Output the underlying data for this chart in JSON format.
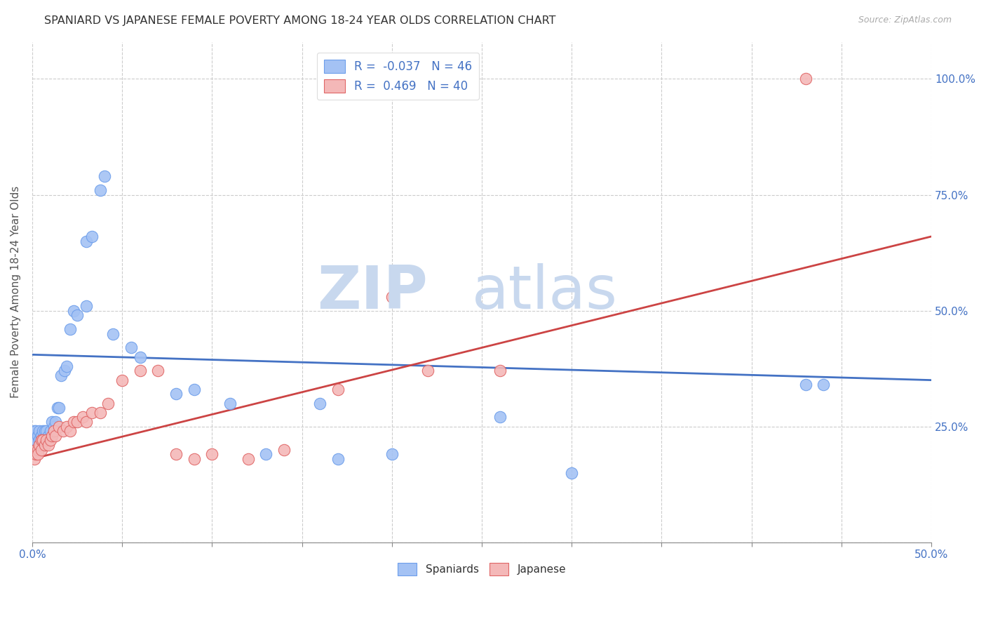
{
  "title": "SPANIARD VS JAPANESE FEMALE POVERTY AMONG 18-24 YEAR OLDS CORRELATION CHART",
  "source": "Source: ZipAtlas.com",
  "ylabel": "Female Poverty Among 18-24 Year Olds",
  "xlim": [
    0.0,
    0.5
  ],
  "ylim": [
    0.0,
    1.08
  ],
  "xticks": [
    0.0,
    0.05,
    0.1,
    0.15,
    0.2,
    0.25,
    0.3,
    0.35,
    0.4,
    0.45,
    0.5
  ],
  "xticklabels": [
    "0.0%",
    "",
    "",
    "",
    "",
    "",
    "",
    "",
    "",
    "",
    "50.0%"
  ],
  "yticks": [
    0.0,
    0.25,
    0.5,
    0.75,
    1.0
  ],
  "yticklabels": [
    "",
    "25.0%",
    "50.0%",
    "75.0%",
    "100.0%"
  ],
  "spaniards_R": -0.037,
  "spaniards_N": 46,
  "japanese_R": 0.469,
  "japanese_N": 40,
  "spaniards_color": "#a4c2f4",
  "japanese_color": "#f4b8b8",
  "spaniards_edge_color": "#6d9eeb",
  "japanese_edge_color": "#e06666",
  "spaniards_line_color": "#4472c4",
  "japanese_line_color": "#cc4444",
  "watermark_zip": "ZIP",
  "watermark_atlas": "atlas",
  "watermark_color": "#c8d8ee",
  "spaniards_x": [
    0.001,
    0.001,
    0.002,
    0.002,
    0.003,
    0.003,
    0.004,
    0.004,
    0.005,
    0.005,
    0.006,
    0.006,
    0.007,
    0.008,
    0.009,
    0.01,
    0.011,
    0.012,
    0.013,
    0.014,
    0.015,
    0.016,
    0.018,
    0.019,
    0.021,
    0.023,
    0.025,
    0.03,
    0.03,
    0.033,
    0.038,
    0.04,
    0.045,
    0.055,
    0.06,
    0.08,
    0.09,
    0.11,
    0.13,
    0.16,
    0.17,
    0.2,
    0.26,
    0.3,
    0.43,
    0.44
  ],
  "spaniards_y": [
    0.22,
    0.24,
    0.22,
    0.24,
    0.23,
    0.23,
    0.22,
    0.24,
    0.23,
    0.23,
    0.24,
    0.22,
    0.24,
    0.24,
    0.23,
    0.24,
    0.26,
    0.25,
    0.26,
    0.29,
    0.29,
    0.36,
    0.37,
    0.38,
    0.46,
    0.5,
    0.49,
    0.51,
    0.65,
    0.66,
    0.76,
    0.79,
    0.45,
    0.42,
    0.4,
    0.32,
    0.33,
    0.3,
    0.19,
    0.3,
    0.18,
    0.19,
    0.27,
    0.15,
    0.34,
    0.34
  ],
  "japanese_x": [
    0.001,
    0.002,
    0.002,
    0.003,
    0.003,
    0.004,
    0.005,
    0.005,
    0.006,
    0.007,
    0.008,
    0.009,
    0.01,
    0.011,
    0.012,
    0.013,
    0.015,
    0.017,
    0.019,
    0.021,
    0.023,
    0.025,
    0.028,
    0.03,
    0.033,
    0.038,
    0.042,
    0.05,
    0.06,
    0.07,
    0.08,
    0.09,
    0.1,
    0.12,
    0.14,
    0.17,
    0.2,
    0.22,
    0.26,
    0.43
  ],
  "japanese_y": [
    0.18,
    0.2,
    0.19,
    0.2,
    0.19,
    0.21,
    0.2,
    0.22,
    0.22,
    0.21,
    0.22,
    0.21,
    0.22,
    0.23,
    0.24,
    0.23,
    0.25,
    0.24,
    0.25,
    0.24,
    0.26,
    0.26,
    0.27,
    0.26,
    0.28,
    0.28,
    0.3,
    0.35,
    0.37,
    0.37,
    0.19,
    0.18,
    0.19,
    0.18,
    0.2,
    0.33,
    0.53,
    0.37,
    0.37,
    1.0
  ],
  "blue_line_x": [
    0.0,
    0.5
  ],
  "blue_line_y": [
    0.405,
    0.35
  ],
  "pink_line_x": [
    0.0,
    0.5
  ],
  "pink_line_y": [
    0.18,
    0.66
  ]
}
